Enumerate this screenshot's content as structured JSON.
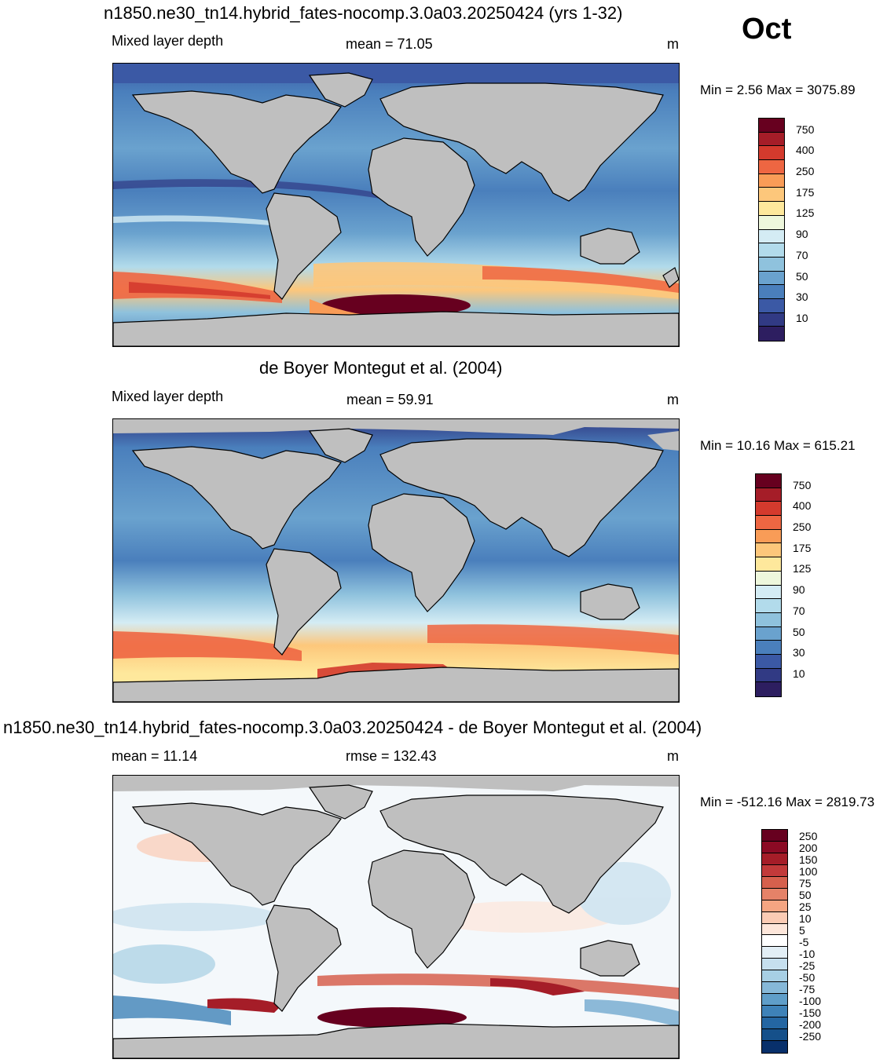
{
  "month": "Oct",
  "panels": [
    {
      "title": "n1850.ne30_tn14.hybrid_fates-nocomp.3.0a03.20250424 (yrs 1-32)",
      "left_label": "Mixed layer depth",
      "center_label": "mean =  71.05",
      "units": "m",
      "minmax": "Min =   2.56 Max = 3075.89",
      "colorbar_labels": [
        "750",
        "400",
        "250",
        "175",
        "125",
        "90",
        "70",
        "50",
        "30",
        "10"
      ],
      "colorbar_colors": [
        "#67001f",
        "#a51d28",
        "#d43a2d",
        "#ee6642",
        "#f99c57",
        "#fdc77b",
        "#fee89c",
        "#eef7dc",
        "#d4ecf4",
        "#b2dbeb",
        "#8fc2dd",
        "#6aa2ce",
        "#4a7fbc",
        "#3b59a5",
        "#313a84",
        "#2d1e60"
      ],
      "colorbar_note": "model ocean colors"
    },
    {
      "title": "de Boyer Montegut et al. (2004)",
      "left_label": "Mixed layer depth",
      "center_label": "mean =  59.91",
      "units": "m",
      "minmax": "Min =  10.16 Max = 615.21",
      "colorbar_labels": [
        "750",
        "400",
        "250",
        "175",
        "125",
        "90",
        "70",
        "50",
        "30",
        "10"
      ],
      "colorbar_colors": [
        "#67001f",
        "#a51d28",
        "#d43a2d",
        "#ee6642",
        "#f99c57",
        "#fdc77b",
        "#fee89c",
        "#eef7dc",
        "#d4ecf4",
        "#b2dbeb",
        "#8fc2dd",
        "#6aa2ce",
        "#4a7fbc",
        "#3b59a5",
        "#313a84",
        "#2d1e60"
      ]
    },
    {
      "title": "n1850.ne30_tn14.hybrid_fates-nocomp.3.0a03.20250424 - de Boyer Montegut et al. (2004)",
      "left_label": "mean =  11.14",
      "center_label": "rmse = 132.43",
      "units": "m",
      "minmax": "Min = -512.16 Max = 2819.73",
      "colorbar_labels": [
        "250",
        "200",
        "150",
        "100",
        "75",
        "50",
        "25",
        "10",
        "5",
        "-5",
        "-10",
        "-25",
        "-50",
        "-75",
        "-100",
        "-150",
        "-200",
        "-250"
      ],
      "colorbar_colors": [
        "#67001f",
        "#8b0a24",
        "#a51d28",
        "#c23a3a",
        "#d6604d",
        "#e58268",
        "#f4a582",
        "#fbcbb4",
        "#fde6da",
        "#ffffff",
        "#e2eef5",
        "#c6dfee",
        "#a7cfe4",
        "#86b8d8",
        "#5f9ec9",
        "#3e82b8",
        "#2466a2",
        "#15508a",
        "#08306b"
      ]
    }
  ]
}
